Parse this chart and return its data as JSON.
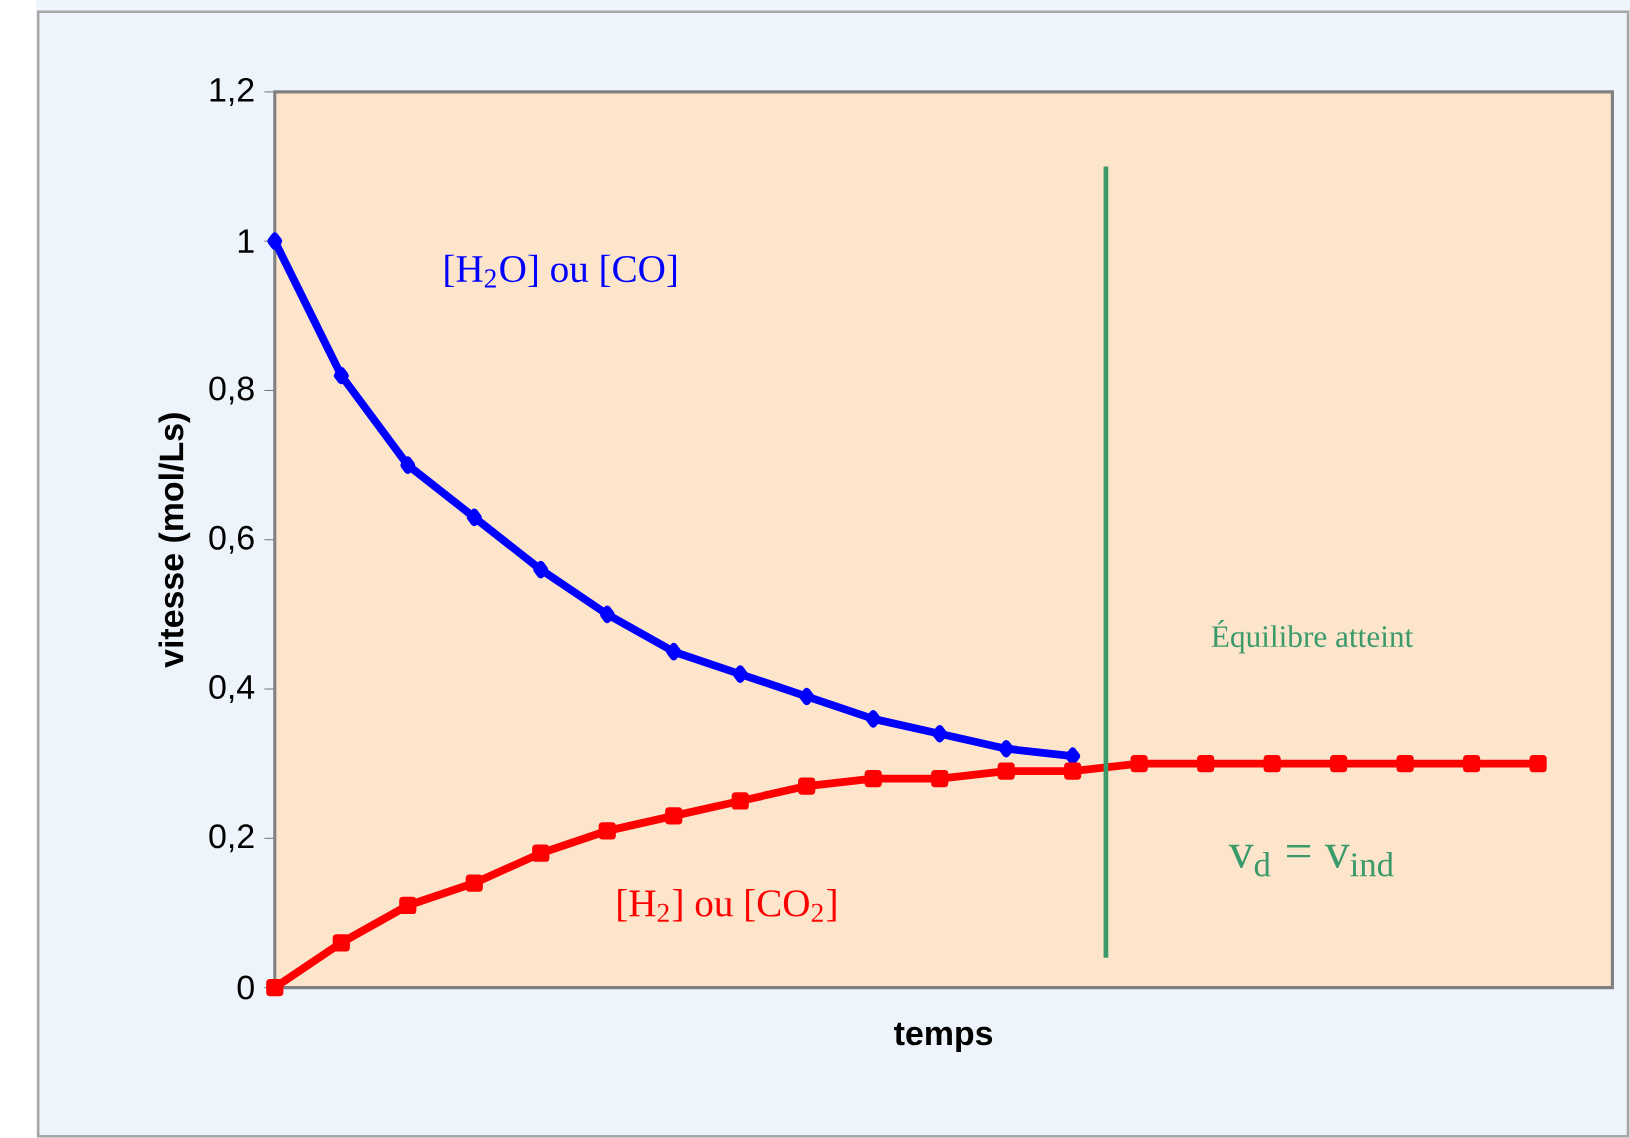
{
  "chart_data": {
    "type": "line",
    "xlabel": "temps",
    "ylabel": "vitesse (mol/Ls)",
    "categories": [
      null,
      null,
      null,
      null,
      null,
      null,
      null,
      null,
      null,
      null,
      null,
      null,
      null,
      null,
      null,
      null,
      null,
      null,
      null,
      null
    ],
    "series": [
      {
        "name": "[H$_{2}$O] ou [CO]",
        "color": "#0000ff",
        "marker": "diamond",
        "values": [
          1.0,
          0.82,
          0.7,
          0.63,
          0.56,
          0.5,
          0.45,
          0.42,
          0.39,
          0.36,
          0.34,
          0.32,
          0.31,
          null,
          null,
          null,
          null,
          null,
          null,
          null
        ]
      },
      {
        "name": "[H$_{2}$] ou [CO$_{2}$]",
        "color": "#ff0000",
        "marker": "square",
        "values": [
          0.0,
          0.06,
          0.11,
          0.14,
          0.18,
          0.21,
          0.23,
          0.25,
          0.27,
          0.28,
          0.28,
          0.29,
          0.29,
          0.3,
          0.3,
          0.3,
          0.3,
          0.3,
          0.3,
          0.3
        ]
      }
    ],
    "ylim": [
      0,
      1.2
    ],
    "yticks": [
      0,
      {
        "value": 0.2,
        "label": "0,2"
      },
      {
        "value": 0.4,
        "label": "0,4"
      },
      {
        "value": 0.6,
        "label": "0,6"
      },
      {
        "value": 0.8,
        "label": "0,8"
      },
      1,
      {
        "value": 1.2,
        "label": "1,2"
      }
    ],
    "tick_labels": "y",
    "annotations": [
      "Équilibre atteint",
      "v$_{d}$ = v$_{ind}$"
    ],
    "legend": false,
    "grid": false
  }
}
